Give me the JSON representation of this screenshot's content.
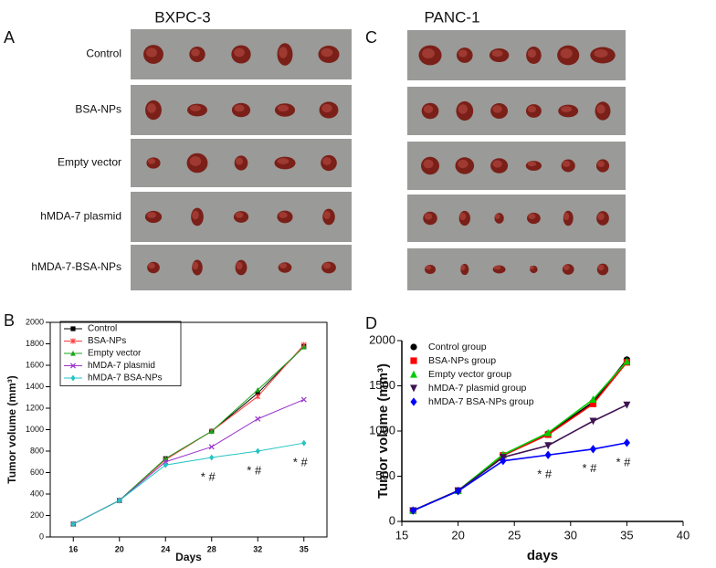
{
  "photos": {
    "a_title": "BXPC-3",
    "c_title": "PANC-1",
    "a_panel": "A",
    "c_panel": "C",
    "a_rows": [
      "Control",
      "BSA-NPs",
      "Empty vector",
      "hMDA-7 plasmid",
      "hMDA-7-BSA-NPs"
    ]
  },
  "chart_data": [
    {
      "type": "line",
      "panel": "B",
      "x_label": "Days",
      "y_label": "Tumor volume (mm³)",
      "categories": [
        16,
        20,
        24,
        28,
        32,
        35
      ],
      "ylim": [
        0,
        2000
      ],
      "yticks": [
        0,
        200,
        400,
        600,
        800,
        1000,
        1200,
        1400,
        1600,
        1800,
        2000
      ],
      "legend": "upper left",
      "series": [
        {
          "name": "Control",
          "color": "#000000",
          "marker": "square",
          "values": [
            120,
            340,
            730,
            985,
            1340,
            1775
          ]
        },
        {
          "name": "BSA-NPs",
          "color": "#ff4040",
          "marker": "star",
          "values": [
            120,
            340,
            720,
            985,
            1310,
            1790
          ]
        },
        {
          "name": "Empty vector",
          "color": "#1aa51a",
          "marker": "triangle",
          "values": [
            120,
            340,
            730,
            985,
            1370,
            1770
          ]
        },
        {
          "name": "hMDA-7 plasmid",
          "color": "#9933cc",
          "marker": "x",
          "values": [
            120,
            340,
            700,
            840,
            1100,
            1280
          ]
        },
        {
          "name": "hMDA-7 BSA-NPs",
          "color": "#22c4c4",
          "marker": "diamond",
          "values": [
            120,
            340,
            670,
            740,
            800,
            875
          ]
        }
      ],
      "annotations": [
        {
          "text": "* #",
          "x": 28
        },
        {
          "text": "* #",
          "x": 32
        },
        {
          "text": "* #",
          "x": 35
        }
      ]
    },
    {
      "type": "line",
      "panel": "D",
      "x_label": "days",
      "y_label": "Tumor volume (mm³)",
      "x": [
        16,
        20,
        24,
        28,
        32,
        35
      ],
      "xlim": [
        15,
        40
      ],
      "xticks": [
        15,
        20,
        25,
        30,
        35,
        40
      ],
      "ylim": [
        0,
        2000
      ],
      "yticks": [
        0,
        500,
        1000,
        1500,
        2000
      ],
      "legend": "upper left",
      "series": [
        {
          "name": "Control group",
          "color": "#000000",
          "marker": "circle",
          "values": [
            120,
            340,
            730,
            970,
            1320,
            1790
          ]
        },
        {
          "name": "BSA-NPs group",
          "color": "#ff0000",
          "marker": "square",
          "values": [
            120,
            340,
            730,
            960,
            1300,
            1760
          ]
        },
        {
          "name": "Empty vector group",
          "color": "#00cc00",
          "marker": "triangle",
          "values": [
            120,
            340,
            740,
            980,
            1350,
            1770
          ]
        },
        {
          "name": "hMDA-7 plasmid group",
          "color": "#3d1250",
          "marker": "down",
          "values": [
            120,
            340,
            710,
            840,
            1110,
            1290
          ]
        },
        {
          "name": "hMDA-7 BSA-NPs group",
          "color": "#0000ff",
          "marker": "diamond",
          "values": [
            120,
            335,
            670,
            735,
            800,
            870
          ]
        }
      ],
      "annotations": [
        {
          "text": "* #",
          "x": 28
        },
        {
          "text": "* #",
          "x": 32
        },
        {
          "text": "* #",
          "x": 35
        }
      ]
    }
  ]
}
